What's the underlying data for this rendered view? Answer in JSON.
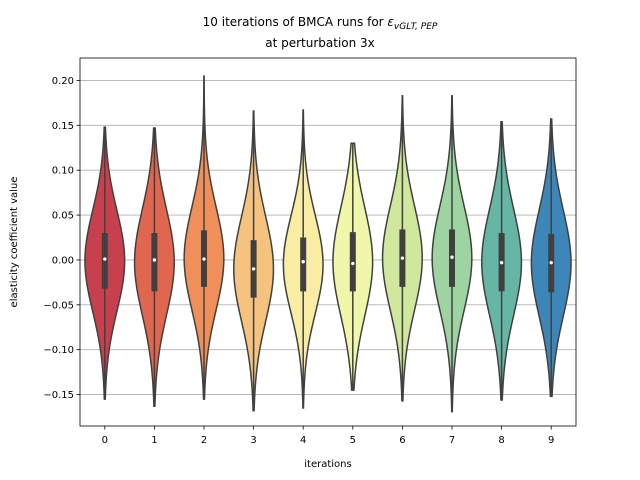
{
  "chart_data": {
    "type": "violin",
    "title_prefix": "10 iterations of BMCA runs for ",
    "title_symbol": "ε",
    "title_subscript": "vGLT, PEP",
    "title_line2": "at perturbation 3x",
    "xlabel": "iterations",
    "ylabel": "elasticity coefficient value",
    "ylim": [
      -0.185,
      0.225
    ],
    "yticks": [
      -0.15,
      -0.1,
      -0.05,
      0.0,
      0.05,
      0.1,
      0.15,
      0.2
    ],
    "ytick_labels": [
      "−0.15",
      "−0.10",
      "−0.05",
      "0.00",
      "0.05",
      "0.10",
      "0.15",
      "0.20"
    ],
    "grid": "horizontal",
    "categories": [
      "0",
      "1",
      "2",
      "3",
      "4",
      "5",
      "6",
      "7",
      "8",
      "9"
    ],
    "colors": [
      "#c8404e",
      "#e1664f",
      "#f08f5a",
      "#f6c37f",
      "#f9eca3",
      "#f0f6aa",
      "#cfe89d",
      "#9dd4a2",
      "#65b6a5",
      "#3d86ba"
    ],
    "series": [
      {
        "min": -0.155,
        "q1": -0.032,
        "median": 0.001,
        "q3": 0.03,
        "max": 0.148
      },
      {
        "min": -0.163,
        "q1": -0.035,
        "median": 0.0,
        "q3": 0.03,
        "max": 0.147
      },
      {
        "min": -0.155,
        "q1": -0.03,
        "median": 0.001,
        "q3": 0.033,
        "max": 0.205
      },
      {
        "min": -0.168,
        "q1": -0.042,
        "median": -0.01,
        "q3": 0.022,
        "max": 0.166
      },
      {
        "min": -0.165,
        "q1": -0.035,
        "median": -0.002,
        "q3": 0.025,
        "max": 0.167
      },
      {
        "min": -0.145,
        "q1": -0.035,
        "median": -0.004,
        "q3": 0.031,
        "max": 0.13
      },
      {
        "min": -0.157,
        "q1": -0.03,
        "median": 0.002,
        "q3": 0.034,
        "max": 0.183
      },
      {
        "min": -0.169,
        "q1": -0.03,
        "median": 0.003,
        "q3": 0.034,
        "max": 0.183
      },
      {
        "min": -0.156,
        "q1": -0.035,
        "median": -0.003,
        "q3": 0.03,
        "max": 0.154
      },
      {
        "min": -0.152,
        "q1": -0.036,
        "median": -0.003,
        "q3": 0.029,
        "max": 0.157
      }
    ]
  }
}
